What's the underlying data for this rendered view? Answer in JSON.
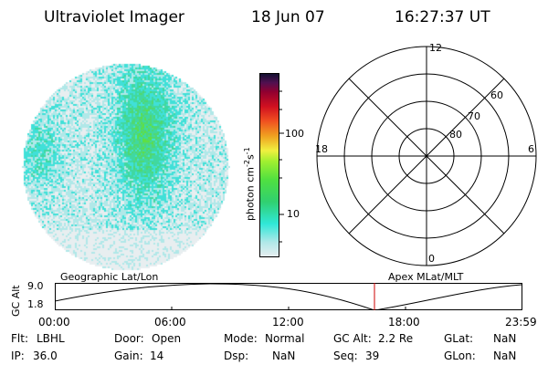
{
  "header": {
    "instrument": "Ultraviolet Imager",
    "date": "18 Jun 07",
    "time": "16:27:37 UT"
  },
  "colorbar": {
    "unit_label": "photon cm",
    "unit_sup": "-2",
    "unit_s": "s",
    "unit_sup2": "-1",
    "ticks": [
      "100",
      "10"
    ],
    "colors": [
      "#e8eef0",
      "#b0e8e8",
      "#30e8d8",
      "#30d070",
      "#50e040",
      "#a0f030",
      "#f0f040",
      "#f0a020",
      "#f05020",
      "#d01020",
      "#900030",
      "#501050",
      "#101030"
    ]
  },
  "polar": {
    "labels": {
      "top": "12",
      "bottom": "0",
      "left": "18",
      "right": "6"
    },
    "rings": [
      "60",
      "70",
      "80"
    ]
  },
  "timeline": {
    "ylabel": "GC Alt",
    "yticks": [
      "9.0",
      "1.8"
    ],
    "left_title": "Geographic Lat/Lon",
    "right_title": "Apex  MLat/MLT",
    "xticks": [
      "00:00",
      "06:00",
      "12:00",
      "18:00",
      "23:59"
    ],
    "marker_time": "16:27"
  },
  "info": {
    "flt_label": "Flt:",
    "flt_value": "LBHL",
    "ip_label": "IP:",
    "ip_value": "36.0",
    "door_label": "Door:",
    "door_value": "Open",
    "gain_label": "Gain:",
    "gain_value": "14",
    "mode_label": "Mode:",
    "mode_value": "Normal",
    "dsp_label": "Dsp:",
    "dsp_value": "NaN",
    "gcalt_label": "GC Alt:",
    "gcalt_value": "2.2 Re",
    "seq_label": "Seq:",
    "seq_value": "39",
    "glat_label": "GLat:",
    "glat_value": "NaN",
    "glon_label": "GLon:",
    "glon_value": "NaN"
  }
}
